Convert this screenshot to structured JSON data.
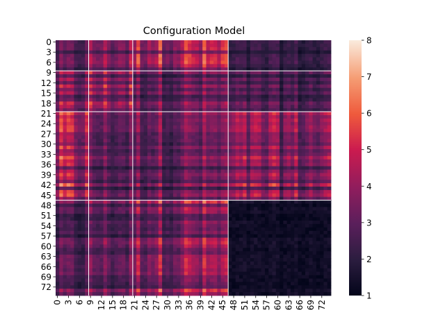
{
  "chart_data": {
    "type": "heatmap",
    "title": "Configuration Model",
    "xlabel": "",
    "ylabel": "",
    "n": 75,
    "x_tick_labels": [
      "0",
      "3",
      "6",
      "9",
      "12",
      "15",
      "18",
      "21",
      "24",
      "27",
      "30",
      "33",
      "36",
      "39",
      "42",
      "45",
      "48",
      "51",
      "54",
      "57",
      "60",
      "63",
      "66",
      "69",
      "72"
    ],
    "y_tick_labels": [
      "0",
      "3",
      "6",
      "9",
      "12",
      "15",
      "18",
      "21",
      "24",
      "27",
      "30",
      "33",
      "36",
      "39",
      "42",
      "45",
      "48",
      "51",
      "54",
      "57",
      "60",
      "63",
      "66",
      "69",
      "72"
    ],
    "colorbar": {
      "min": 1,
      "max": 8,
      "ticks": [
        "1",
        "2",
        "3",
        "4",
        "5",
        "6",
        "7",
        "8"
      ],
      "colormap": "rocket"
    },
    "block_boundaries": [
      9,
      21,
      47
    ],
    "block_mean_values": [
      [
        2.6,
        3.4,
        4.2,
        2.0
      ],
      [
        3.2,
        3.6,
        3.0,
        2.4
      ],
      [
        4.0,
        2.9,
        3.2,
        3.5
      ],
      [
        2.6,
        3.0,
        3.8,
        1.3
      ]
    ],
    "grid": false
  }
}
